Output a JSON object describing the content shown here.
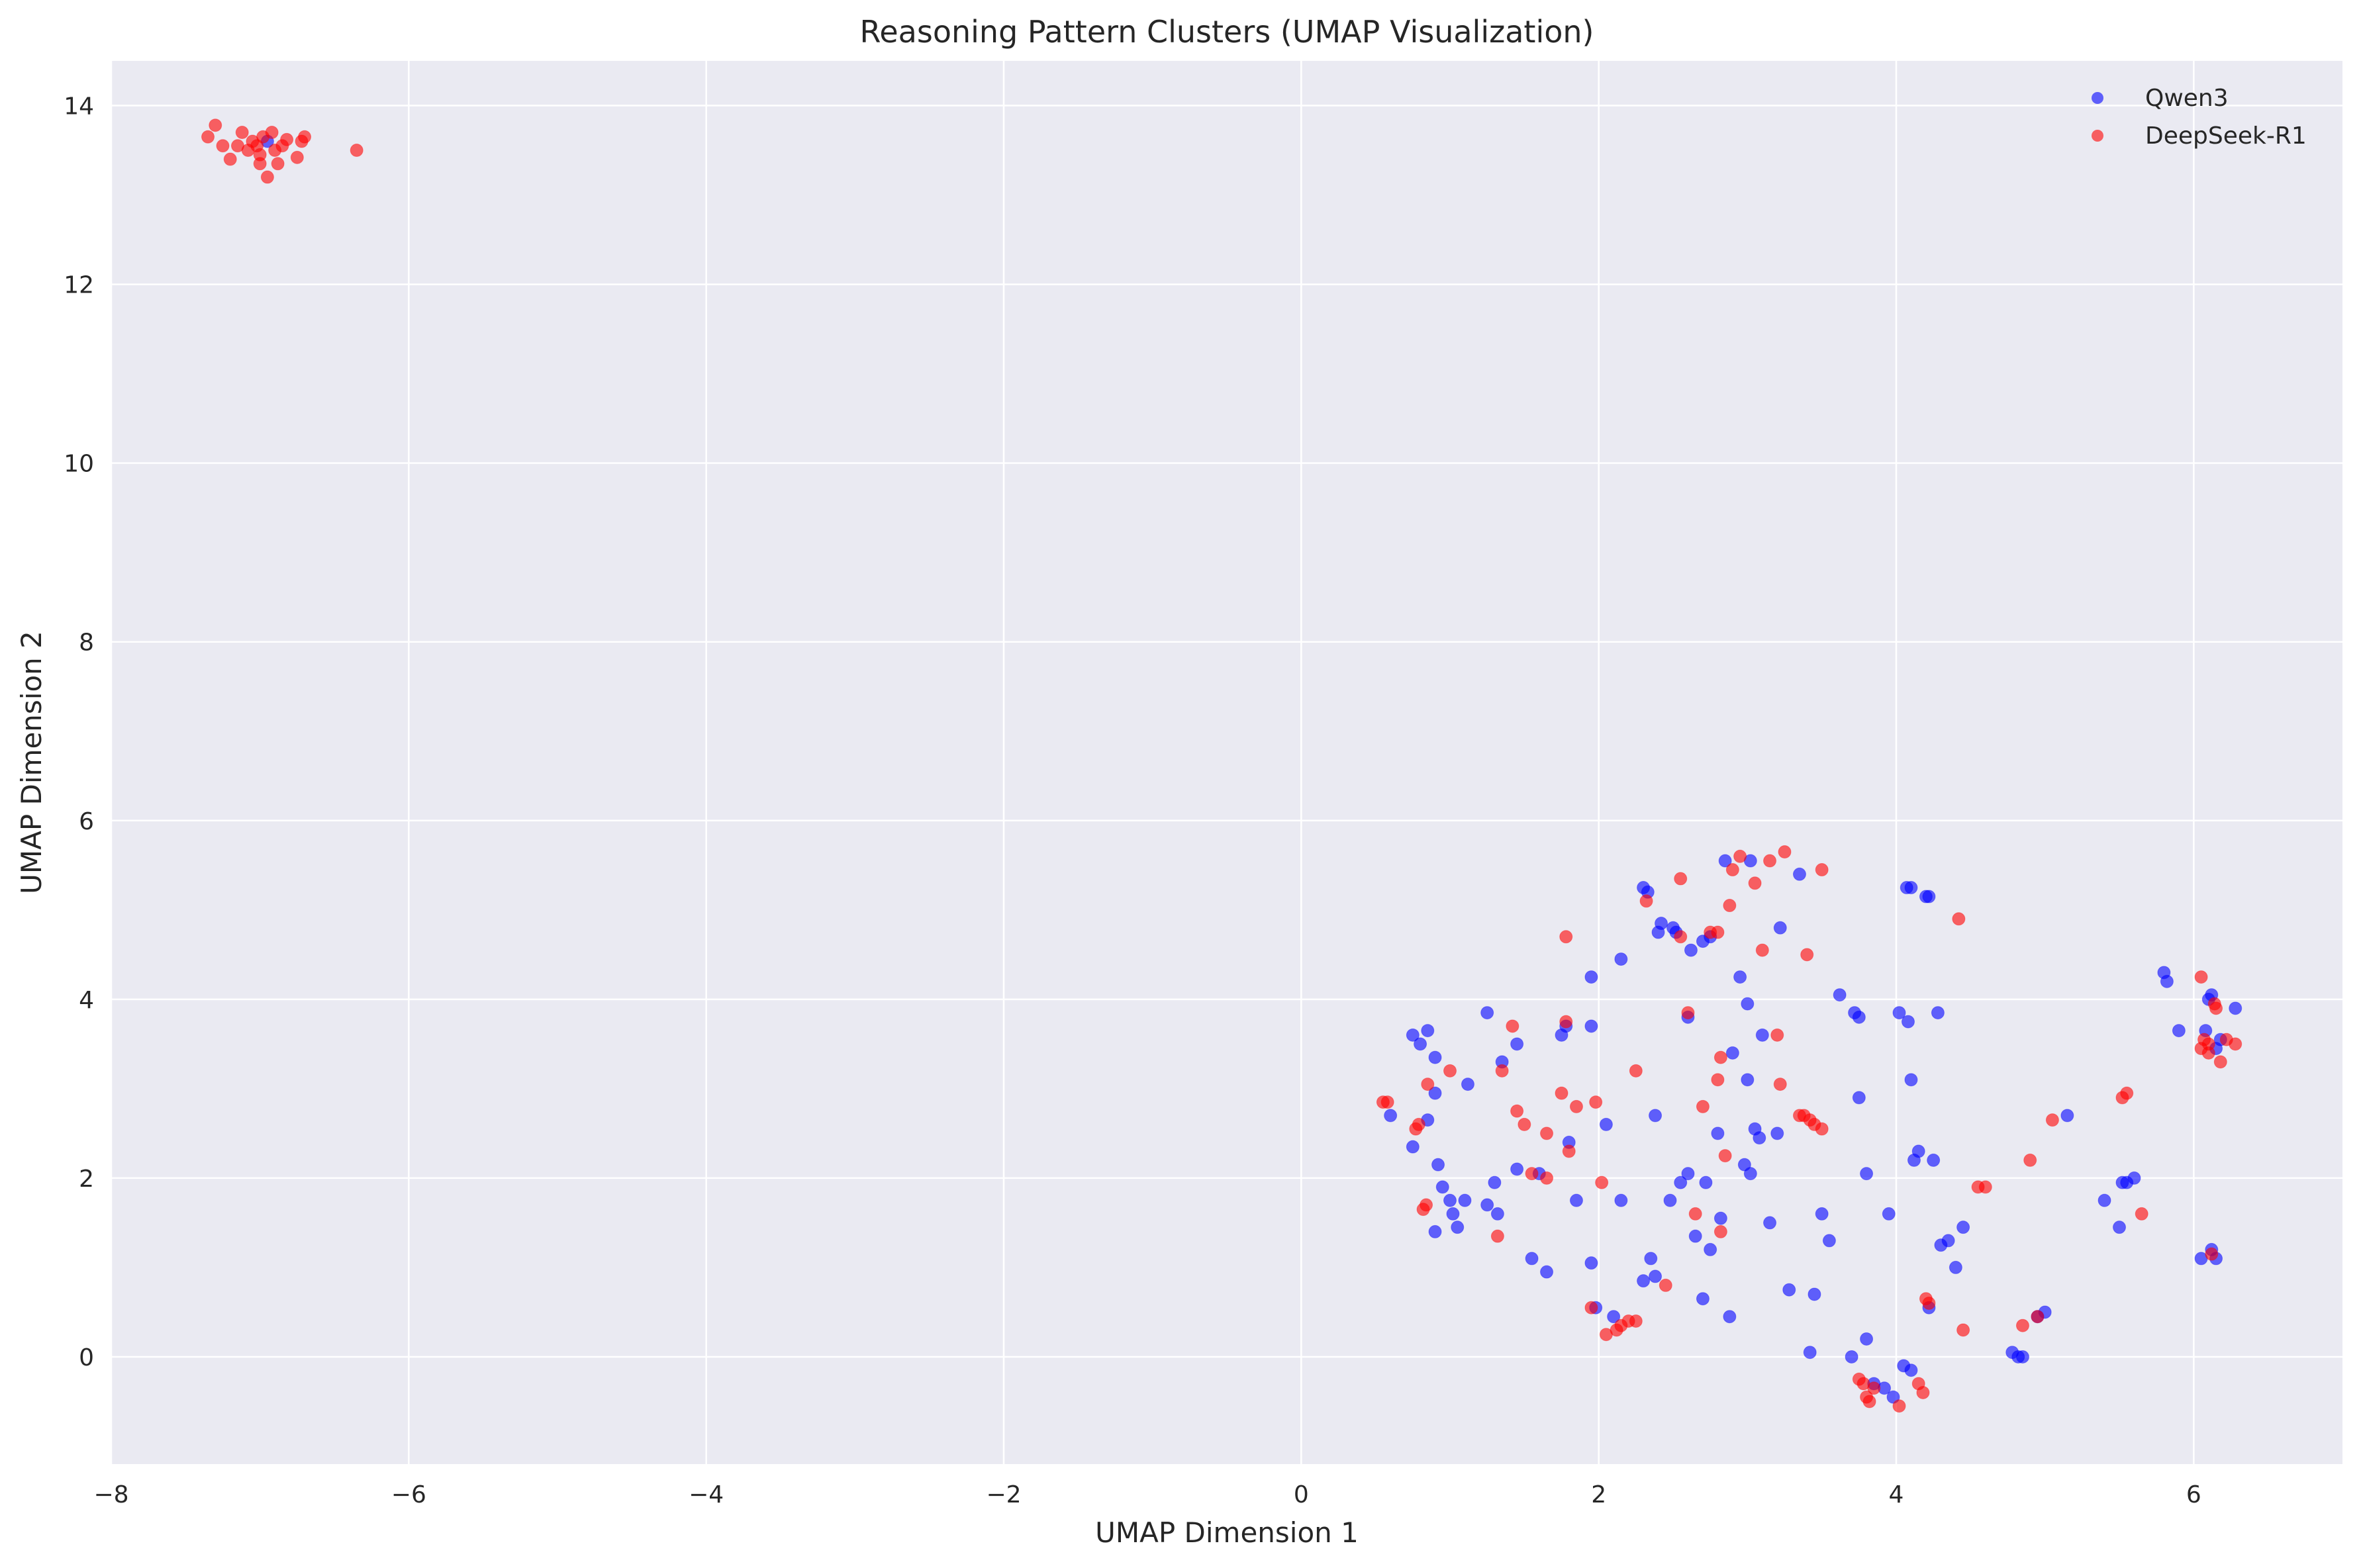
{
  "chart_data": {
    "type": "scatter",
    "title": "Reasoning Pattern Clusters (UMAP Visualization)",
    "xlabel": "UMAP Dimension 1",
    "ylabel": "UMAP Dimension 2",
    "xlim": [
      -8,
      7
    ],
    "ylim": [
      -1.2,
      14.5
    ],
    "xticks": [
      -8,
      -6,
      -4,
      -2,
      0,
      2,
      4,
      6
    ],
    "yticks": [
      0,
      2,
      4,
      6,
      8,
      10,
      12,
      14
    ],
    "grid": true,
    "legend_position": "top-right",
    "series": [
      {
        "name": "Qwen3",
        "color": "#0000ff",
        "points": [
          [
            -6.95,
            13.6
          ],
          [
            0.6,
            2.7
          ],
          [
            0.75,
            3.6
          ],
          [
            0.8,
            3.5
          ],
          [
            0.75,
            2.35
          ],
          [
            0.85,
            3.65
          ],
          [
            0.85,
            2.65
          ],
          [
            0.9,
            3.35
          ],
          [
            0.9,
            2.95
          ],
          [
            0.92,
            2.15
          ],
          [
            0.95,
            1.9
          ],
          [
            1.0,
            1.75
          ],
          [
            1.02,
            1.6
          ],
          [
            1.05,
            1.45
          ],
          [
            0.9,
            1.4
          ],
          [
            1.1,
            1.75
          ],
          [
            1.12,
            3.05
          ],
          [
            1.25,
            3.85
          ],
          [
            1.25,
            1.7
          ],
          [
            1.3,
            1.95
          ],
          [
            1.32,
            1.6
          ],
          [
            1.35,
            3.3
          ],
          [
            1.45,
            3.5
          ],
          [
            1.45,
            2.1
          ],
          [
            1.55,
            1.1
          ],
          [
            1.6,
            2.05
          ],
          [
            1.65,
            0.95
          ],
          [
            1.75,
            3.6
          ],
          [
            1.78,
            3.7
          ],
          [
            1.8,
            2.4
          ],
          [
            1.85,
            1.75
          ],
          [
            1.95,
            3.7
          ],
          [
            1.95,
            4.25
          ],
          [
            1.95,
            1.05
          ],
          [
            1.98,
            0.55
          ],
          [
            2.05,
            2.6
          ],
          [
            2.1,
            0.45
          ],
          [
            2.15,
            1.75
          ],
          [
            2.15,
            4.45
          ],
          [
            2.3,
            5.25
          ],
          [
            2.33,
            5.2
          ],
          [
            2.3,
            0.85
          ],
          [
            2.35,
            1.1
          ],
          [
            2.38,
            0.9
          ],
          [
            2.38,
            2.7
          ],
          [
            2.4,
            4.75
          ],
          [
            2.42,
            4.85
          ],
          [
            2.48,
            1.75
          ],
          [
            2.5,
            4.8
          ],
          [
            2.52,
            4.75
          ],
          [
            2.55,
            1.95
          ],
          [
            2.6,
            3.8
          ],
          [
            2.6,
            2.05
          ],
          [
            2.62,
            4.55
          ],
          [
            2.65,
            1.35
          ],
          [
            2.7,
            4.65
          ],
          [
            2.7,
            0.65
          ],
          [
            2.72,
            1.95
          ],
          [
            2.75,
            4.7
          ],
          [
            2.75,
            1.2
          ],
          [
            2.8,
            2.5
          ],
          [
            2.85,
            5.55
          ],
          [
            2.82,
            1.55
          ],
          [
            2.88,
            0.45
          ],
          [
            2.9,
            3.4
          ],
          [
            2.95,
            4.25
          ],
          [
            2.98,
            2.15
          ],
          [
            3.0,
            3.95
          ],
          [
            3.0,
            3.1
          ],
          [
            3.02,
            2.05
          ],
          [
            3.02,
            5.55
          ],
          [
            3.05,
            2.55
          ],
          [
            3.08,
            2.45
          ],
          [
            3.1,
            3.6
          ],
          [
            3.15,
            1.5
          ],
          [
            3.2,
            2.5
          ],
          [
            3.22,
            4.8
          ],
          [
            3.28,
            0.75
          ],
          [
            3.35,
            5.4
          ],
          [
            3.42,
            0.05
          ],
          [
            3.45,
            0.7
          ],
          [
            3.5,
            1.6
          ],
          [
            3.55,
            1.3
          ],
          [
            3.62,
            4.05
          ],
          [
            3.7,
            0.0
          ],
          [
            3.72,
            3.85
          ],
          [
            3.75,
            3.8
          ],
          [
            3.75,
            2.9
          ],
          [
            3.8,
            2.05
          ],
          [
            3.8,
            0.2
          ],
          [
            3.85,
            -0.3
          ],
          [
            3.92,
            -0.35
          ],
          [
            3.95,
            1.6
          ],
          [
            3.98,
            -0.45
          ],
          [
            4.02,
            3.85
          ],
          [
            4.05,
            -0.1
          ],
          [
            4.07,
            5.25
          ],
          [
            4.08,
            3.75
          ],
          [
            4.1,
            5.25
          ],
          [
            4.1,
            -0.15
          ],
          [
            4.1,
            3.1
          ],
          [
            4.12,
            2.2
          ],
          [
            4.15,
            2.3
          ],
          [
            4.2,
            5.15
          ],
          [
            4.22,
            5.15
          ],
          [
            4.22,
            0.55
          ],
          [
            4.25,
            2.2
          ],
          [
            4.28,
            3.85
          ],
          [
            4.3,
            1.25
          ],
          [
            4.35,
            1.3
          ],
          [
            4.4,
            1.0
          ],
          [
            4.45,
            1.45
          ],
          [
            4.78,
            0.05
          ],
          [
            4.82,
            0.0
          ],
          [
            4.85,
            0.0
          ],
          [
            4.95,
            0.45
          ],
          [
            5.0,
            0.5
          ],
          [
            5.15,
            2.7
          ],
          [
            5.4,
            1.75
          ],
          [
            5.5,
            1.45
          ],
          [
            5.52,
            1.95
          ],
          [
            5.55,
            1.95
          ],
          [
            5.6,
            2.0
          ],
          [
            5.8,
            4.3
          ],
          [
            5.82,
            4.2
          ],
          [
            5.9,
            3.65
          ],
          [
            6.05,
            1.1
          ],
          [
            6.08,
            3.65
          ],
          [
            6.1,
            4.0
          ],
          [
            6.12,
            4.05
          ],
          [
            6.12,
            1.2
          ],
          [
            6.15,
            3.45
          ],
          [
            6.18,
            3.55
          ],
          [
            6.28,
            3.9
          ],
          [
            6.15,
            1.1
          ]
        ]
      },
      {
        "name": "DeepSeek-R1",
        "color": "#ff0000",
        "points": [
          [
            -7.35,
            13.65
          ],
          [
            -7.3,
            13.78
          ],
          [
            -7.25,
            13.55
          ],
          [
            -7.2,
            13.4
          ],
          [
            -7.15,
            13.55
          ],
          [
            -7.12,
            13.7
          ],
          [
            -7.08,
            13.5
          ],
          [
            -7.05,
            13.6
          ],
          [
            -7.02,
            13.55
          ],
          [
            -7.0,
            13.45
          ],
          [
            -7.0,
            13.35
          ],
          [
            -6.98,
            13.65
          ],
          [
            -6.95,
            13.2
          ],
          [
            -6.92,
            13.7
          ],
          [
            -6.9,
            13.5
          ],
          [
            -6.88,
            13.35
          ],
          [
            -6.85,
            13.55
          ],
          [
            -6.82,
            13.62
          ],
          [
            -6.75,
            13.42
          ],
          [
            -6.72,
            13.6
          ],
          [
            -6.7,
            13.65
          ],
          [
            -6.35,
            13.5
          ],
          [
            0.55,
            2.85
          ],
          [
            0.58,
            2.85
          ],
          [
            0.77,
            2.55
          ],
          [
            0.79,
            2.6
          ],
          [
            0.82,
            1.65
          ],
          [
            0.84,
            1.7
          ],
          [
            0.85,
            3.05
          ],
          [
            1.0,
            3.2
          ],
          [
            1.32,
            1.35
          ],
          [
            1.35,
            3.2
          ],
          [
            1.42,
            3.7
          ],
          [
            1.45,
            2.75
          ],
          [
            1.5,
            2.6
          ],
          [
            1.55,
            2.05
          ],
          [
            1.65,
            2.5
          ],
          [
            1.65,
            2.0
          ],
          [
            1.75,
            2.95
          ],
          [
            1.78,
            3.75
          ],
          [
            1.78,
            4.7
          ],
          [
            1.8,
            2.3
          ],
          [
            1.85,
            2.8
          ],
          [
            1.95,
            0.55
          ],
          [
            1.98,
            2.85
          ],
          [
            2.02,
            1.95
          ],
          [
            2.05,
            0.25
          ],
          [
            2.12,
            0.3
          ],
          [
            2.15,
            0.35
          ],
          [
            2.2,
            0.4
          ],
          [
            2.25,
            0.4
          ],
          [
            2.25,
            3.2
          ],
          [
            2.32,
            5.1
          ],
          [
            2.45,
            0.8
          ],
          [
            2.55,
            4.7
          ],
          [
            2.55,
            5.35
          ],
          [
            2.6,
            3.85
          ],
          [
            2.65,
            1.6
          ],
          [
            2.7,
            2.8
          ],
          [
            2.75,
            4.75
          ],
          [
            2.8,
            4.75
          ],
          [
            2.8,
            3.1
          ],
          [
            2.82,
            3.35
          ],
          [
            2.82,
            1.4
          ],
          [
            2.85,
            2.25
          ],
          [
            2.88,
            5.05
          ],
          [
            2.9,
            5.45
          ],
          [
            2.95,
            5.6
          ],
          [
            3.05,
            5.3
          ],
          [
            3.1,
            4.55
          ],
          [
            3.15,
            5.55
          ],
          [
            3.2,
            3.6
          ],
          [
            3.22,
            3.05
          ],
          [
            3.25,
            5.65
          ],
          [
            3.35,
            2.7
          ],
          [
            3.38,
            2.7
          ],
          [
            3.4,
            4.5
          ],
          [
            3.42,
            2.65
          ],
          [
            3.45,
            2.6
          ],
          [
            3.5,
            2.55
          ],
          [
            3.5,
            5.45
          ],
          [
            3.75,
            -0.25
          ],
          [
            3.78,
            -0.3
          ],
          [
            3.8,
            -0.45
          ],
          [
            3.82,
            -0.5
          ],
          [
            3.85,
            -0.35
          ],
          [
            4.02,
            -0.55
          ],
          [
            4.15,
            -0.3
          ],
          [
            4.18,
            -0.4
          ],
          [
            4.2,
            0.65
          ],
          [
            4.22,
            0.6
          ],
          [
            4.42,
            4.9
          ],
          [
            4.45,
            0.3
          ],
          [
            4.55,
            1.9
          ],
          [
            4.6,
            1.9
          ],
          [
            4.85,
            0.35
          ],
          [
            4.9,
            2.2
          ],
          [
            4.95,
            0.45
          ],
          [
            5.05,
            2.65
          ],
          [
            5.52,
            2.9
          ],
          [
            5.55,
            2.95
          ],
          [
            5.65,
            1.6
          ],
          [
            6.05,
            4.25
          ],
          [
            6.05,
            3.45
          ],
          [
            6.07,
            3.55
          ],
          [
            6.1,
            3.4
          ],
          [
            6.1,
            3.5
          ],
          [
            6.12,
            1.15
          ],
          [
            6.14,
            3.95
          ],
          [
            6.15,
            3.9
          ],
          [
            6.18,
            3.3
          ],
          [
            6.22,
            3.55
          ],
          [
            6.28,
            3.5
          ]
        ]
      }
    ]
  }
}
